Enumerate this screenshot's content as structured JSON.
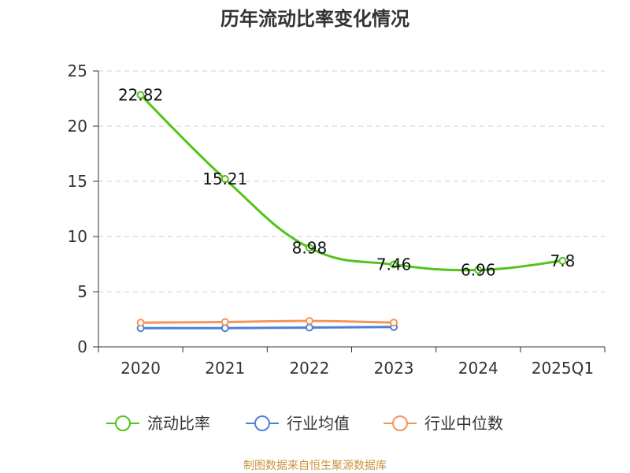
{
  "chart_data": {
    "type": "line",
    "title": "历年流动比率变化情况",
    "categories": [
      "2020",
      "2021",
      "2022",
      "2023",
      "2024",
      "2025Q1"
    ],
    "ylim": [
      0,
      25
    ],
    "yticks": [
      0,
      5,
      10,
      15,
      20,
      25
    ],
    "grid": true,
    "legend_position": "bottom",
    "series": [
      {
        "name": "流动比率",
        "color": "#52c41a",
        "values": [
          22.82,
          15.21,
          8.98,
          7.46,
          6.96,
          7.8
        ],
        "labels": [
          "22.82",
          "15.21",
          "8.98",
          "7.46",
          "6.96",
          "7.8"
        ]
      },
      {
        "name": "行业均值",
        "color": "#4e7fdb",
        "values": [
          1.7,
          1.7,
          1.75,
          1.8,
          null,
          null
        ]
      },
      {
        "name": "行业中位数",
        "color": "#f5955b",
        "values": [
          2.2,
          2.25,
          2.35,
          2.2,
          null,
          null
        ]
      }
    ]
  },
  "source_text": "制图数据来自恒生聚源数据库",
  "source_color": "#c8963e"
}
